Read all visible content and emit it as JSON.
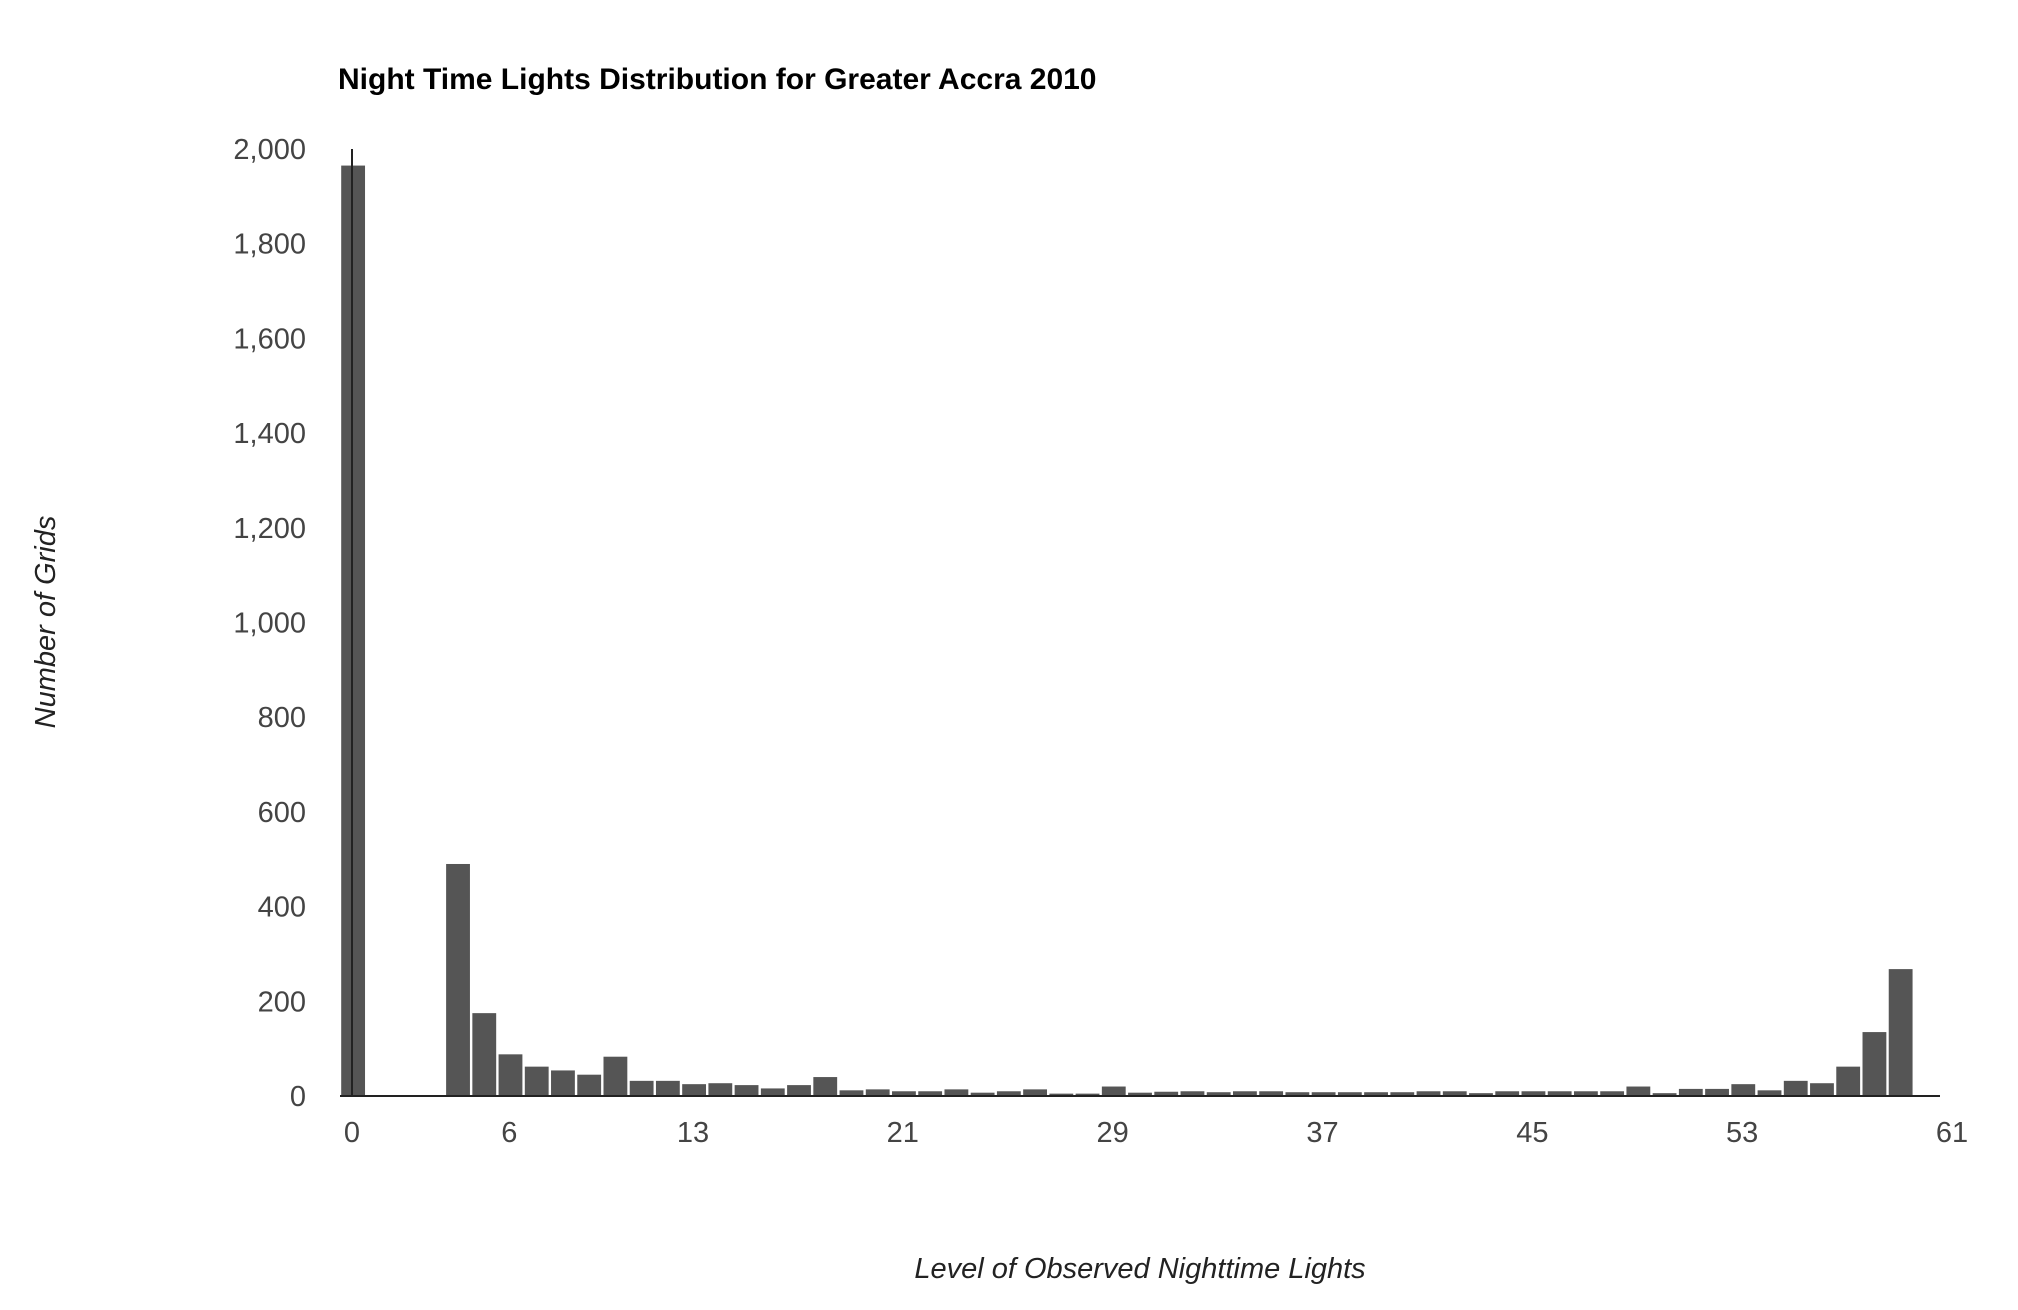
{
  "chart_data": {
    "type": "bar",
    "title": "Night Time Lights Distribution for Greater Accra 2010",
    "xlabel": "Level of Observed Nighttime Lights",
    "ylabel": "Number of Grids",
    "xlim": [
      0,
      61
    ],
    "ylim": [
      0,
      2000
    ],
    "x_ticks": [
      "0",
      "6",
      "13",
      "21",
      "29",
      "37",
      "45",
      "53",
      "61"
    ],
    "y_ticks": [
      "0",
      "200",
      "400",
      "600",
      "800",
      "1,000",
      "1,200",
      "1,400",
      "1,600",
      "1,800",
      "2,000"
    ],
    "grid": false,
    "legend": "none",
    "bar_color": "#555555",
    "series": [
      {
        "bin_starts": [
          0,
          1,
          2,
          3,
          4,
          5,
          6,
          7,
          8,
          9,
          10,
          11,
          12,
          13,
          14,
          15,
          16,
          17,
          18,
          19,
          20,
          21,
          22,
          23,
          24,
          25,
          26,
          27,
          28,
          29,
          30,
          31,
          32,
          33,
          34,
          35,
          36,
          37,
          38,
          39,
          40,
          41,
          42,
          43,
          44,
          45,
          46,
          47,
          48,
          49,
          50,
          51,
          52,
          53,
          54,
          55,
          56,
          57,
          58,
          59,
          60
        ],
        "values": [
          1965,
          0,
          0,
          0,
          490,
          175,
          88,
          62,
          54,
          45,
          83,
          32,
          32,
          25,
          27,
          23,
          16,
          23,
          40,
          12,
          14,
          10,
          10,
          14,
          7,
          10,
          14,
          5,
          5,
          20,
          7,
          9,
          10,
          8,
          10,
          10,
          8,
          8,
          8,
          8,
          8,
          10,
          10,
          6,
          10,
          10,
          10,
          10,
          10,
          20,
          6,
          15,
          15,
          25,
          12,
          32,
          27,
          62,
          135,
          268,
          0
        ]
      }
    ]
  }
}
